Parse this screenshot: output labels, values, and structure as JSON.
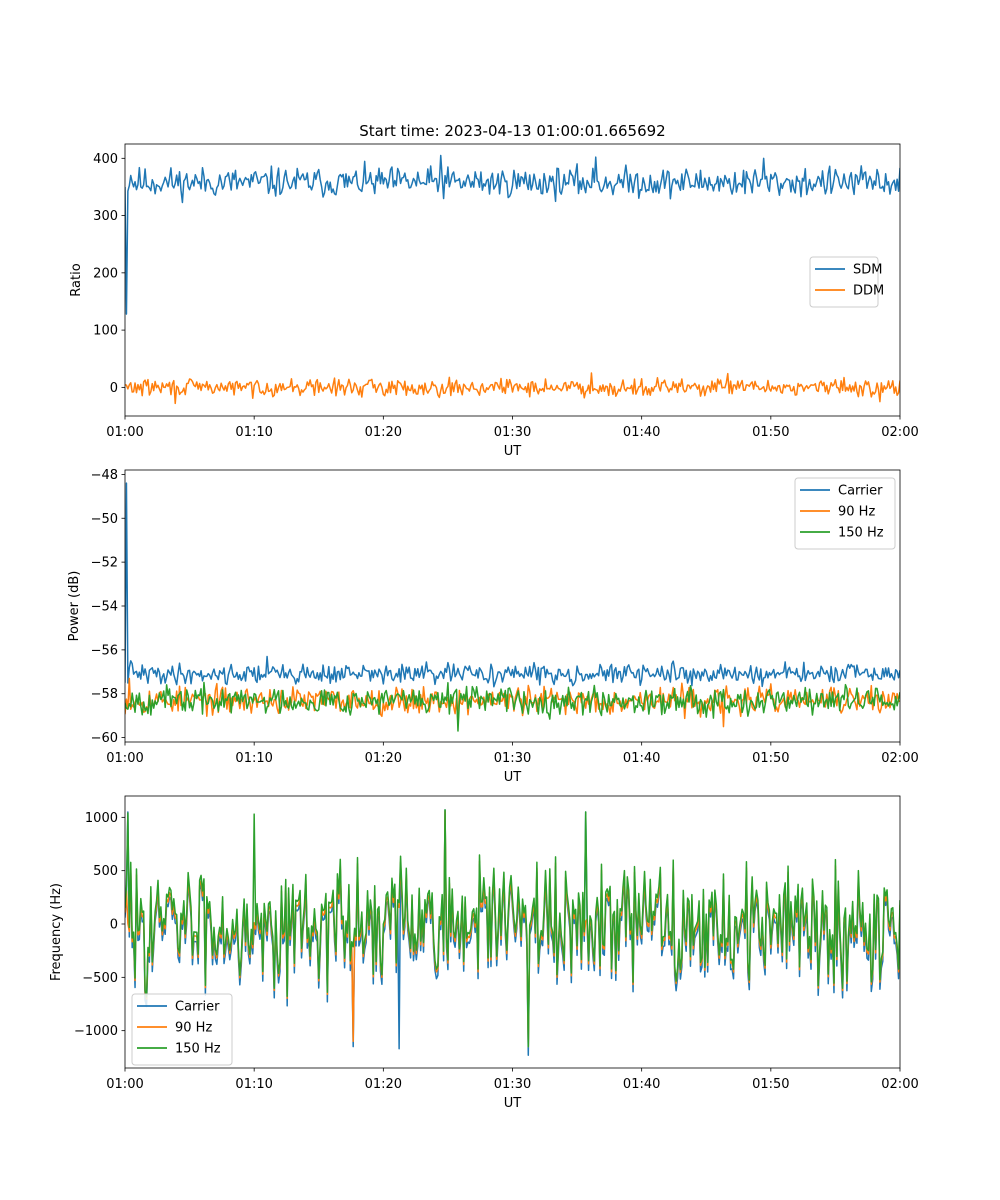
{
  "colors": {
    "blue": "#1f77b4",
    "orange": "#ff7f0e",
    "green": "#2ca02c"
  },
  "chart_data": [
    {
      "type": "line",
      "title": "Start time: 2023-04-13 01:00:01.665692",
      "xlabel": "UT",
      "ylabel": "Ratio",
      "xlim": [
        "01:00",
        "02:00"
      ],
      "ylim": [
        -50,
        425
      ],
      "xticks": [
        "01:00",
        "01:10",
        "01:20",
        "01:30",
        "01:40",
        "01:50",
        "02:00"
      ],
      "yticks": [
        400,
        300,
        200,
        100,
        0
      ],
      "legend": "center-right",
      "series": [
        {
          "name": "SDM",
          "color": "blue",
          "baseline": 358,
          "amplitude": 16,
          "seed": 11,
          "points": [
            [
              "01:00:00",
              350
            ],
            [
              "01:00:10",
              128
            ],
            [
              "01:00:25",
              370
            ],
            [
              "01:24:30",
              405
            ],
            [
              "01:36:30",
              402
            ],
            [
              "01:49:30",
              400
            ]
          ]
        },
        {
          "name": "DDM",
          "color": "orange",
          "baseline": 0,
          "amplitude": 9,
          "seed": 29,
          "points": [
            [
              "01:03:50",
              -28
            ],
            [
              "01:36:10",
              25
            ],
            [
              "01:46:40",
              24
            ],
            [
              "01:58:30",
              -25
            ]
          ]
        }
      ]
    },
    {
      "type": "line",
      "title": "",
      "xlabel": "UT",
      "ylabel": "Power (dB)",
      "xlim": [
        "01:00",
        "02:00"
      ],
      "ylim": [
        -60.2,
        -47.8
      ],
      "xticks": [
        "01:00",
        "01:10",
        "01:20",
        "01:30",
        "01:40",
        "01:50",
        "02:00"
      ],
      "yticks": [
        -48,
        -50,
        -52,
        -54,
        -56,
        -58,
        -60
      ],
      "legend": "upper-right",
      "series": [
        {
          "name": "Carrier",
          "color": "blue",
          "baseline": -57.1,
          "amplitude": 0.28,
          "seed": 41,
          "points": [
            [
              "01:00:00",
              -57.5
            ],
            [
              "01:00:10",
              -48.4
            ],
            [
              "01:00:25",
              -56.5
            ],
            [
              "01:11:00",
              -56.3
            ],
            [
              "01:30:00",
              -56.9
            ]
          ]
        },
        {
          "name": "90 Hz",
          "color": "orange",
          "baseline": -58.3,
          "amplitude": 0.38,
          "seed": 53,
          "points": [
            [
              "01:00:20",
              -57.3
            ],
            [
              "01:25:50",
              -59.4
            ],
            [
              "01:46:20",
              -59.5
            ]
          ]
        },
        {
          "name": "150 Hz",
          "color": "green",
          "baseline": -58.3,
          "amplitude": 0.38,
          "seed": 67,
          "points": [
            [
              "01:25:50",
              -59.7
            ],
            [
              "01:25:00",
              -57.5
            ]
          ]
        }
      ]
    },
    {
      "type": "line",
      "title": "",
      "xlabel": "UT",
      "ylabel": "Frequency (Hz)",
      "xlim": [
        "01:00",
        "02:00"
      ],
      "ylim": [
        -1350,
        1200
      ],
      "xticks": [
        "01:00",
        "01:10",
        "01:20",
        "01:30",
        "01:40",
        "01:50",
        "02:00"
      ],
      "yticks": [
        1000,
        500,
        0,
        -500,
        -1000
      ],
      "legend": "lower-left",
      "series": [
        {
          "name": "Carrier",
          "color": "blue",
          "baseline": -60,
          "amplitude": 330,
          "seed": 83,
          "points": [
            [
              "01:00:15",
              1050
            ],
            [
              "01:17:40",
              -1150
            ],
            [
              "01:21:10",
              -1170
            ],
            [
              "01:31:10",
              -1230
            ],
            [
              "01:24:50",
              1070
            ],
            [
              "01:35:40",
              1050
            ]
          ]
        },
        {
          "name": "90 Hz",
          "color": "orange",
          "baseline": -10,
          "amplitude": 320,
          "seed": 83,
          "points": [
            [
              "01:17:40",
              -1100
            ],
            [
              "01:31:10",
              -1150
            ],
            [
              "01:24:50",
              1060
            ]
          ]
        },
        {
          "name": "150 Hz",
          "color": "green",
          "baseline": 30,
          "amplitude": 330,
          "seed": 83,
          "points": [
            [
              "01:00:15",
              1040
            ],
            [
              "01:10:00",
              1030
            ],
            [
              "01:24:50",
              1070
            ],
            [
              "01:35:40",
              1050
            ],
            [
              "01:31:10",
              -1150
            ]
          ]
        }
      ]
    }
  ]
}
